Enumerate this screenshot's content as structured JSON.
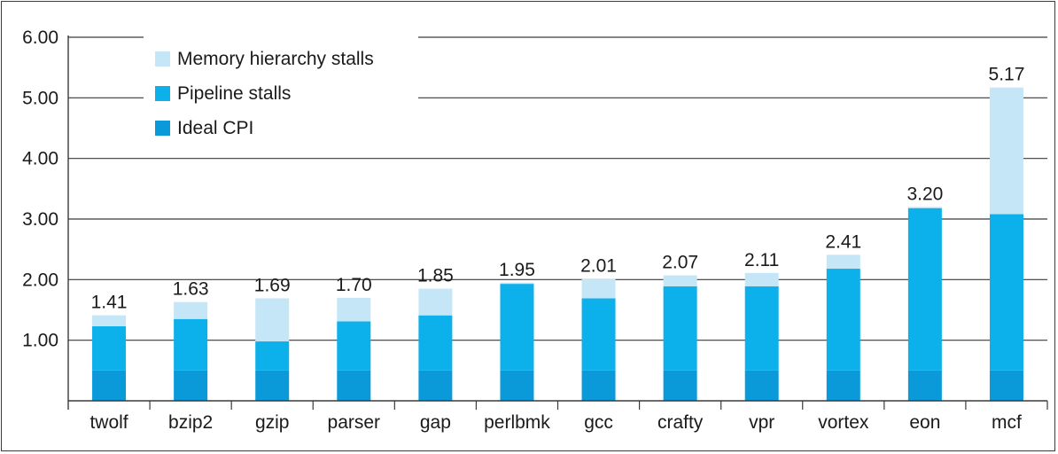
{
  "chart_data": {
    "type": "bar",
    "stacked": true,
    "categories": [
      "twolf",
      "bzip2",
      "gzip",
      "parser",
      "gap",
      "perlbmk",
      "gcc",
      "crafty",
      "vpr",
      "vortex",
      "eon",
      "mcf"
    ],
    "series": [
      {
        "name": "Ideal CPI",
        "color": "#0a9ad9",
        "values": [
          0.5,
          0.5,
          0.5,
          0.5,
          0.5,
          0.5,
          0.5,
          0.5,
          0.5,
          0.5,
          0.5,
          0.5
        ]
      },
      {
        "name": "Pipeline stalls",
        "color": "#0cb0ea",
        "values": [
          0.73,
          0.85,
          0.48,
          0.81,
          0.91,
          1.43,
          1.19,
          1.39,
          1.39,
          1.68,
          2.68,
          2.58
        ]
      },
      {
        "name": "Memory hierarchy stalls",
        "color": "#c5e6f7",
        "values": [
          0.18,
          0.28,
          0.71,
          0.39,
          0.44,
          0.02,
          0.32,
          0.18,
          0.22,
          0.23,
          0.02,
          2.09
        ]
      }
    ],
    "totals": [
      "1.41",
      "1.63",
      "1.69",
      "1.70",
      "1.85",
      "1.95",
      "2.01",
      "2.07",
      "2.11",
      "2.41",
      "3.20",
      "5.17"
    ],
    "ylim": [
      0,
      6
    ],
    "yticks": [
      "6.00",
      "5.00",
      "4.00",
      "3.00",
      "2.00",
      "1.00"
    ],
    "ytick_values": [
      6,
      5,
      4,
      3,
      2,
      1
    ],
    "gridlines": true,
    "legend_position": "top-left",
    "legend_order": [
      "Memory hierarchy stalls",
      "Pipeline stalls",
      "Ideal CPI"
    ]
  }
}
